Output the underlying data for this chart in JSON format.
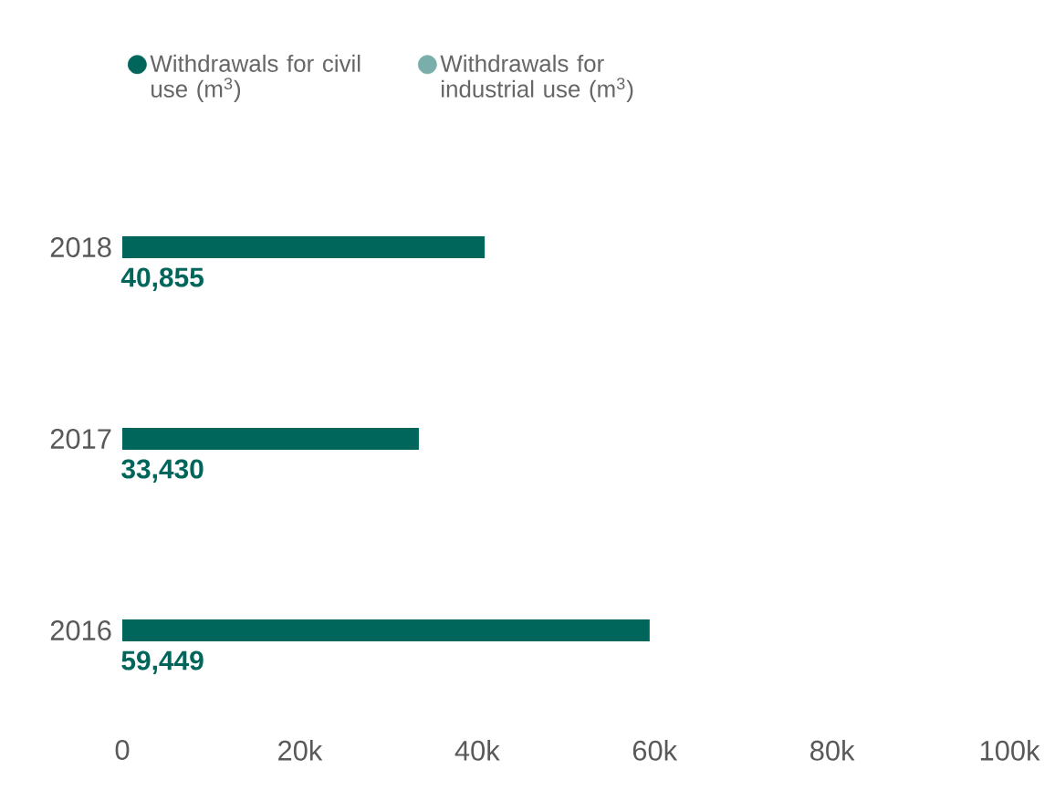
{
  "chart_data": {
    "type": "bar",
    "orientation": "horizontal",
    "categories": [
      "2018",
      "2017",
      "2016"
    ],
    "series": [
      {
        "name": "Withdrawals for civil use (m$^{3}$)",
        "color": "#00665b",
        "values": [
          40855,
          33430,
          59449
        ],
        "value_labels": [
          "40,855",
          "33,430",
          "59,449"
        ]
      },
      {
        "name": "Withdrawals for industrial use (m$^{3}$)",
        "color": "#79aeaa",
        "values": [
          null,
          null,
          null
        ]
      }
    ],
    "xlim": [
      0,
      100000
    ],
    "xticks": [
      0,
      {
        "value": 20000,
        "label": "20k"
      },
      {
        "value": 40000,
        "label": "40k"
      },
      {
        "value": 60000,
        "label": "60k"
      },
      {
        "value": 80000,
        "label": "80k"
      },
      {
        "value": 100000,
        "label": "100k"
      }
    ],
    "legend": "top"
  }
}
